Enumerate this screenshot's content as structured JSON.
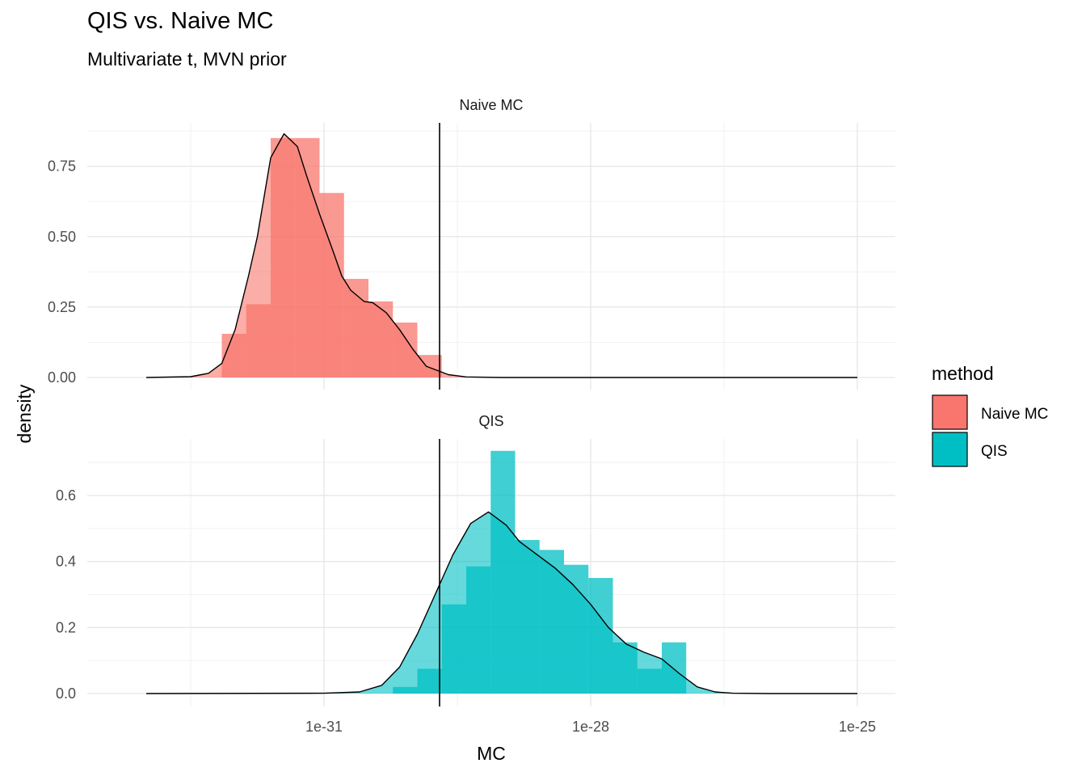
{
  "title": "QIS vs. Naive MC",
  "subtitle": "Multivariate t, MVN prior",
  "legend": {
    "title": "method",
    "items": [
      {
        "label": "Naive MC",
        "color": "#F8766D"
      },
      {
        "label": "QIS",
        "color": "#00BFC4"
      }
    ]
  },
  "chart_data": {
    "type": "histogram",
    "xlabel": "MC",
    "ylabel": "density",
    "x_scale": "log10",
    "x_ticks": [
      {
        "label": "1e-31",
        "value": -31
      },
      {
        "label": "1e-28",
        "value": -28
      },
      {
        "label": "1e-25",
        "value": -25
      }
    ],
    "xlim_log10": [
      -33.0,
      -25.0
    ],
    "vline_log10": -29.7,
    "grid": true,
    "legend_position": "right",
    "facets": [
      {
        "name": "Naive MC",
        "color": "#F8766D",
        "ylim": [
          0,
          0.85
        ],
        "y_ticks": [
          {
            "label": "0.00",
            "value": 0
          },
          {
            "label": "0.25",
            "value": 0.25
          },
          {
            "label": "0.50",
            "value": 0.5
          },
          {
            "label": "0.75",
            "value": 0.75
          }
        ],
        "bin_width_log10": 0.275,
        "bins": [
          {
            "start": -32.15,
            "density": 0.155
          },
          {
            "start": -31.875,
            "density": 0.26
          },
          {
            "start": -31.6,
            "density": 0.85
          },
          {
            "start": -31.325,
            "density": 0.85
          },
          {
            "start": -31.05,
            "density": 0.655
          },
          {
            "start": -30.775,
            "density": 0.35
          },
          {
            "start": -30.5,
            "density": 0.27
          },
          {
            "start": -30.225,
            "density": 0.195
          },
          {
            "start": -29.95,
            "density": 0.08
          }
        ],
        "density_curve": {
          "x": [
            -33.0,
            -32.5,
            -32.3,
            -32.15,
            -32.0,
            -31.85,
            -31.75,
            -31.6,
            -31.45,
            -31.3,
            -31.2,
            -31.05,
            -30.9,
            -30.8,
            -30.7,
            -30.55,
            -30.45,
            -30.3,
            -30.15,
            -30.0,
            -29.85,
            -29.6,
            -29.4,
            -29.0,
            -27.0,
            -25.0
          ],
          "y": [
            0,
            0.003,
            0.015,
            0.05,
            0.17,
            0.36,
            0.5,
            0.78,
            0.865,
            0.82,
            0.72,
            0.58,
            0.45,
            0.36,
            0.31,
            0.27,
            0.265,
            0.23,
            0.17,
            0.1,
            0.04,
            0.01,
            0.002,
            0,
            0,
            0
          ]
        }
      },
      {
        "name": "QIS",
        "color": "#00BFC4",
        "ylim": [
          0,
          0.75
        ],
        "y_ticks": [
          {
            "label": "0.0",
            "value": 0
          },
          {
            "label": "0.2",
            "value": 0.2
          },
          {
            "label": "0.4",
            "value": 0.4
          },
          {
            "label": "0.6",
            "value": 0.6
          }
        ],
        "bin_width_log10": 0.275,
        "bins": [
          {
            "start": -30.225,
            "density": 0.02
          },
          {
            "start": -29.95,
            "density": 0.075
          },
          {
            "start": -29.675,
            "density": 0.27
          },
          {
            "start": -29.4,
            "density": 0.385
          },
          {
            "start": -29.125,
            "density": 0.735
          },
          {
            "start": -28.85,
            "density": 0.465
          },
          {
            "start": -28.575,
            "density": 0.435
          },
          {
            "start": -28.3,
            "density": 0.39
          },
          {
            "start": -28.025,
            "density": 0.35
          },
          {
            "start": -27.75,
            "density": 0.155
          },
          {
            "start": -27.475,
            "density": 0.075
          },
          {
            "start": -27.2,
            "density": 0.155
          },
          {
            "start": -26.925,
            "density": 0.0
          }
        ],
        "density_curve": {
          "x": [
            -33.0,
            -31.0,
            -30.6,
            -30.35,
            -30.15,
            -29.95,
            -29.75,
            -29.55,
            -29.35,
            -29.15,
            -28.95,
            -28.8,
            -28.6,
            -28.4,
            -28.2,
            -28.0,
            -27.8,
            -27.6,
            -27.4,
            -27.2,
            -27.0,
            -26.8,
            -26.6,
            -26.4,
            -26.0,
            -25.0
          ],
          "y": [
            0,
            0.001,
            0.005,
            0.025,
            0.08,
            0.18,
            0.3,
            0.42,
            0.515,
            0.55,
            0.51,
            0.46,
            0.42,
            0.38,
            0.33,
            0.27,
            0.2,
            0.15,
            0.125,
            0.105,
            0.06,
            0.02,
            0.005,
            0.001,
            0,
            0
          ]
        }
      }
    ]
  }
}
